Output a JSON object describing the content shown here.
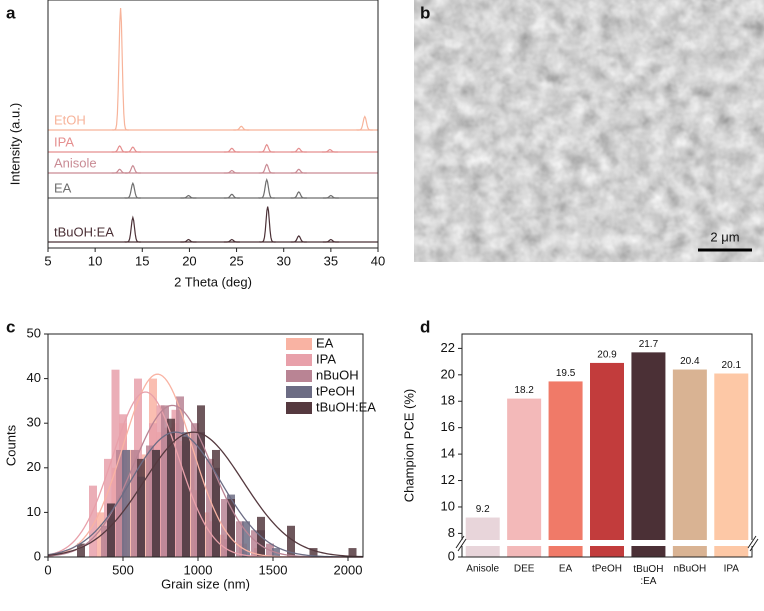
{
  "chart_data": [
    {
      "type": "xrd",
      "panel": "a",
      "xlabel": "2 Theta (deg)",
      "ylabel": "Intensity (a.u.)",
      "xlim": [
        5,
        40
      ],
      "xticks": [
        5,
        10,
        15,
        20,
        25,
        30,
        35,
        40
      ],
      "series": [
        {
          "name": "EtOH",
          "color": "#f7b39a",
          "x": [
            12.7,
            25.5,
            38.6
          ],
          "values": [
            100,
            3,
            11
          ]
        },
        {
          "name": "IPA",
          "color": "#e58f8f",
          "x": [
            12.6,
            14.0,
            24.5,
            28.2,
            31.6,
            34.9
          ],
          "values": [
            5,
            4,
            3,
            6,
            3,
            2
          ]
        },
        {
          "name": "Anisole",
          "color": "#c98b94",
          "x": [
            12.6,
            14.0,
            24.5,
            28.2,
            31.6
          ],
          "values": [
            3,
            6,
            2,
            7,
            3
          ]
        },
        {
          "name": "EA",
          "color": "#6e6e6e",
          "x": [
            14.0,
            19.9,
            24.5,
            28.2,
            31.6,
            35.0
          ],
          "values": [
            12,
            2,
            3,
            15,
            5,
            2
          ]
        },
        {
          "name": "tBuOH:EA",
          "color": "#4b3036",
          "x": [
            14.0,
            19.9,
            24.5,
            28.3,
            31.6,
            35.0
          ],
          "values": [
            20,
            2,
            2,
            29,
            5,
            2
          ]
        }
      ]
    },
    {
      "type": "image",
      "panel": "b",
      "scale_bar": "2 μm"
    },
    {
      "type": "histogram",
      "panel": "c",
      "xlabel": "Grain size (nm)",
      "ylabel": "Counts",
      "xlim": [
        0,
        2100
      ],
      "xticks": [
        0,
        500,
        1000,
        1500,
        2000
      ],
      "ylim": [
        0,
        50
      ],
      "yticks": [
        0,
        10,
        20,
        30,
        40,
        50
      ],
      "legend": "top-right",
      "series": [
        {
          "name": "EA",
          "color": "#f9b3a3",
          "x": [
            350,
            450,
            500,
            550,
            650,
            700,
            750,
            800,
            850,
            900,
            950,
            1000,
            1050,
            1100,
            1150,
            1200,
            1300,
            1400
          ],
          "values": [
            10,
            20,
            30,
            24,
            23,
            40,
            28,
            24,
            30,
            26,
            28,
            15,
            10,
            8,
            5,
            4,
            3,
            2
          ],
          "fit": {
            "center": 730,
            "sd": 230,
            "peak": 41
          }
        },
        {
          "name": "IPA",
          "color": "#e8a0aa",
          "x": [
            300,
            400,
            450,
            500,
            600,
            700,
            750,
            800,
            850,
            900,
            1000,
            1100,
            1200,
            1300
          ],
          "values": [
            16,
            22,
            42,
            32,
            40,
            30,
            34,
            29,
            33,
            25,
            12,
            8,
            4,
            2
          ],
          "fit": {
            "center": 650,
            "sd": 220,
            "peak": 37
          }
        },
        {
          "name": "nBuOH",
          "color": "#b98494",
          "x": [
            380,
            480,
            580,
            680,
            780,
            880,
            980,
            1080,
            1180,
            1280,
            1380,
            1480
          ],
          "values": [
            7,
            24,
            24,
            25,
            34,
            36,
            30,
            22,
            13,
            8,
            6,
            3
          ],
          "fit": {
            "center": 830,
            "sd": 260,
            "peak": 34
          }
        },
        {
          "name": "tPeOH",
          "color": "#6c6c84",
          "x": [
            420,
            520,
            620,
            720,
            820,
            920,
            1020,
            1120,
            1220,
            1320,
            1420,
            1520
          ],
          "values": [
            12,
            24,
            18,
            24,
            28,
            28,
            28,
            20,
            14,
            8,
            6,
            2
          ],
          "fit": {
            "center": 850,
            "sd": 300,
            "peak": 28
          }
        },
        {
          "name": "tBuOH:EA",
          "color": "#55393f",
          "x": [
            220,
            420,
            620,
            720,
            820,
            920,
            1020,
            1120,
            1220,
            1420,
            1620,
            1770,
            2030
          ],
          "values": [
            3,
            12,
            22,
            24,
            31,
            27,
            34,
            24,
            13,
            9,
            7,
            2,
            2
          ],
          "fit": {
            "center": 970,
            "sd": 330,
            "peak": 28
          }
        }
      ]
    },
    {
      "type": "bar",
      "panel": "d",
      "ylabel": "Champion PCE (%)",
      "categories": [
        "Anisole",
        "DEE",
        "EA",
        "tPeOH",
        "tBuOH\n:EA",
        "nBuOH",
        "IPA"
      ],
      "values": [
        9.2,
        18.2,
        19.5,
        20.9,
        21.7,
        20.4,
        20.1
      ],
      "colors": [
        "#e8d5da",
        "#f3b9b9",
        "#f07a68",
        "#c23c3c",
        "#4b3036",
        "#d9b393",
        "#fdc8a6"
      ],
      "ylim": [
        0,
        22
      ],
      "yticks": [
        0,
        8,
        10,
        12,
        14,
        16,
        18,
        20,
        22
      ],
      "axis_break": [
        1,
        7.5
      ]
    }
  ]
}
